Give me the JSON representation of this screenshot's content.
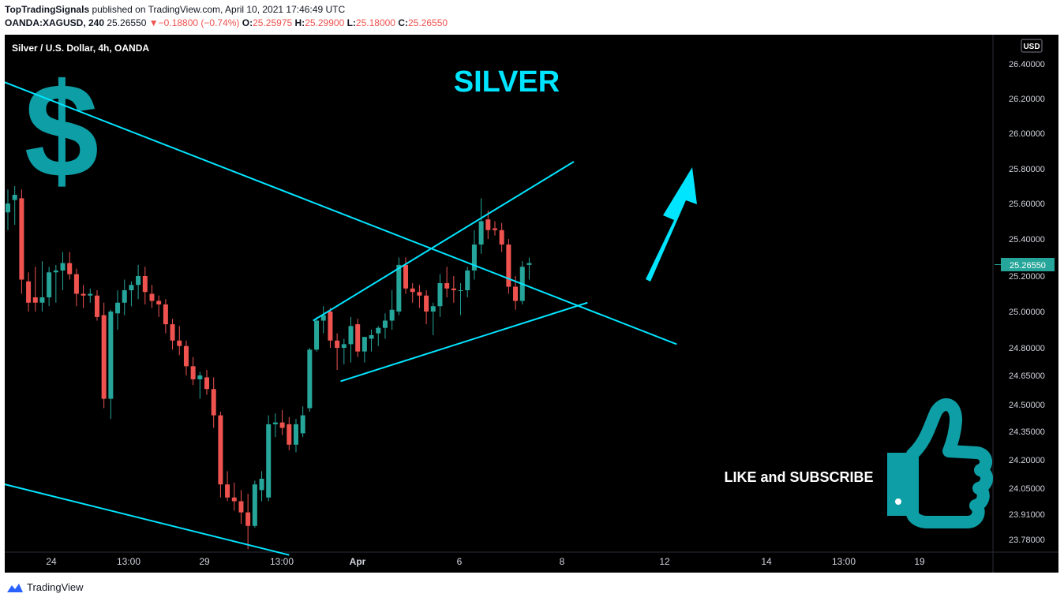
{
  "header": {
    "publisher": "TopTradingSignals",
    "published_text": " published on TradingView.com, April 10, 2021 17:46:49 UTC",
    "symbol": "OANDA:XAGUSD, 240",
    "last": "25.26550",
    "change_arrow": "▼",
    "change": "−0.18800 (−0.74%)",
    "o_label": "O:",
    "o_value": "25.25975",
    "h_label": "H:",
    "h_value": "25.29900",
    "l_label": "L:",
    "l_value": "25.18000",
    "c_label": "C:",
    "c_value": "25.26550"
  },
  "legend": {
    "title": "Silver / U.S. Dollar, 4h, OANDA"
  },
  "currency_badge": "USD",
  "annotations": {
    "silver_label": "SILVER",
    "like_label": "LIKE and SUBSCRIBE",
    "dollar_glyph": "$"
  },
  "footer": {
    "brand": "TradingView"
  },
  "colors": {
    "background": "#000000",
    "up": "#26a69a",
    "down": "#ef5350",
    "trendline": "#00e5ff",
    "last_price_badge": "#26a69a",
    "icon_teal": "#0e9ea5"
  },
  "icons": [
    "dollar-icon",
    "thumbs-up-icon",
    "up-arrow-icon",
    "tradingview-logo-icon"
  ],
  "chart_data": {
    "type": "candlestick",
    "title": "Silver / U.S. Dollar, 4h, OANDA",
    "y_axis": {
      "ticks": [
        "26.40000",
        "26.20000",
        "26.00000",
        "25.80000",
        "25.60000",
        "25.40000",
        "25.20000",
        "25.00000",
        "24.80000",
        "24.65000",
        "24.50000",
        "24.35000",
        "24.20000",
        "24.05000",
        "23.91000",
        "23.78000"
      ],
      "currency": "USD"
    },
    "x_axis": {
      "ticks": [
        "24",
        "13:00",
        "29",
        "13:00",
        "Apr",
        "6",
        "8",
        "12",
        "14",
        "13:00",
        "19"
      ]
    },
    "last_price": "25.26550",
    "candles": [
      {
        "o": 25.55,
        "h": 25.68,
        "l": 25.45,
        "c": 25.6
      },
      {
        "o": 25.62,
        "h": 25.7,
        "l": 25.48,
        "c": 25.65
      },
      {
        "o": 25.63,
        "h": 25.68,
        "l": 25.1,
        "c": 25.18
      },
      {
        "o": 25.17,
        "h": 25.22,
        "l": 25.0,
        "c": 25.05
      },
      {
        "o": 25.08,
        "h": 25.25,
        "l": 25.0,
        "c": 25.05
      },
      {
        "o": 25.05,
        "h": 25.28,
        "l": 25.0,
        "c": 25.08
      },
      {
        "o": 25.08,
        "h": 25.25,
        "l": 25.03,
        "c": 25.22
      },
      {
        "o": 25.22,
        "h": 25.26,
        "l": 25.05,
        "c": 25.23
      },
      {
        "o": 25.23,
        "h": 25.33,
        "l": 25.12,
        "c": 25.27
      },
      {
        "o": 25.27,
        "h": 25.33,
        "l": 25.18,
        "c": 25.21
      },
      {
        "o": 25.21,
        "h": 25.24,
        "l": 25.03,
        "c": 25.1
      },
      {
        "o": 25.1,
        "h": 25.15,
        "l": 25.02,
        "c": 25.09
      },
      {
        "o": 25.09,
        "h": 25.13,
        "l": 25.05,
        "c": 25.1
      },
      {
        "o": 25.09,
        "h": 25.12,
        "l": 24.95,
        "c": 24.97
      },
      {
        "o": 24.98,
        "h": 25.05,
        "l": 24.48,
        "c": 24.53
      },
      {
        "o": 24.53,
        "h": 25.01,
        "l": 24.42,
        "c": 25.0
      },
      {
        "o": 24.99,
        "h": 25.12,
        "l": 24.9,
        "c": 25.05
      },
      {
        "o": 25.05,
        "h": 25.18,
        "l": 24.98,
        "c": 25.12
      },
      {
        "o": 25.12,
        "h": 25.17,
        "l": 25.03,
        "c": 25.15
      },
      {
        "o": 25.15,
        "h": 25.26,
        "l": 25.07,
        "c": 25.2
      },
      {
        "o": 25.2,
        "h": 25.25,
        "l": 25.04,
        "c": 25.11
      },
      {
        "o": 25.1,
        "h": 25.15,
        "l": 25.02,
        "c": 25.06
      },
      {
        "o": 25.06,
        "h": 25.09,
        "l": 24.97,
        "c": 25.04
      },
      {
        "o": 25.04,
        "h": 25.07,
        "l": 24.88,
        "c": 24.93
      },
      {
        "o": 24.93,
        "h": 24.96,
        "l": 24.79,
        "c": 24.84
      },
      {
        "o": 24.84,
        "h": 24.92,
        "l": 24.76,
        "c": 24.81
      },
      {
        "o": 24.81,
        "h": 24.84,
        "l": 24.65,
        "c": 24.7
      },
      {
        "o": 24.7,
        "h": 24.75,
        "l": 24.6,
        "c": 24.63
      },
      {
        "o": 24.63,
        "h": 24.67,
        "l": 24.53,
        "c": 24.65
      },
      {
        "o": 24.64,
        "h": 24.68,
        "l": 24.55,
        "c": 24.58
      },
      {
        "o": 24.58,
        "h": 24.64,
        "l": 24.37,
        "c": 24.44
      },
      {
        "o": 24.44,
        "h": 24.46,
        "l": 24.0,
        "c": 24.07
      },
      {
        "o": 24.07,
        "h": 24.14,
        "l": 23.98,
        "c": 24.0
      },
      {
        "o": 24.0,
        "h": 24.08,
        "l": 23.93,
        "c": 23.98
      },
      {
        "o": 23.98,
        "h": 24.04,
        "l": 23.86,
        "c": 23.92
      },
      {
        "o": 23.92,
        "h": 24.02,
        "l": 23.73,
        "c": 23.85
      },
      {
        "o": 23.85,
        "h": 24.09,
        "l": 23.84,
        "c": 24.07
      },
      {
        "o": 24.04,
        "h": 24.14,
        "l": 23.98,
        "c": 24.1
      },
      {
        "o": 24.0,
        "h": 24.44,
        "l": 23.98,
        "c": 24.39
      },
      {
        "o": 24.39,
        "h": 24.45,
        "l": 24.32,
        "c": 24.4
      },
      {
        "o": 24.4,
        "h": 24.47,
        "l": 24.33,
        "c": 24.37
      },
      {
        "o": 24.39,
        "h": 24.43,
        "l": 24.25,
        "c": 24.28
      },
      {
        "o": 24.28,
        "h": 24.42,
        "l": 24.24,
        "c": 24.39
      },
      {
        "o": 24.34,
        "h": 24.49,
        "l": 24.32,
        "c": 24.44
      },
      {
        "o": 24.48,
        "h": 24.8,
        "l": 24.46,
        "c": 24.79
      },
      {
        "o": 24.79,
        "h": 24.97,
        "l": 24.78,
        "c": 24.95
      },
      {
        "o": 24.95,
        "h": 25.03,
        "l": 24.88,
        "c": 24.98
      },
      {
        "o": 25.0,
        "h": 25.02,
        "l": 24.8,
        "c": 24.84
      },
      {
        "o": 24.84,
        "h": 24.88,
        "l": 24.68,
        "c": 24.8
      },
      {
        "o": 24.8,
        "h": 24.85,
        "l": 24.71,
        "c": 24.82
      },
      {
        "o": 24.82,
        "h": 24.97,
        "l": 24.72,
        "c": 24.92
      },
      {
        "o": 24.93,
        "h": 24.96,
        "l": 24.75,
        "c": 24.78
      },
      {
        "o": 24.78,
        "h": 24.85,
        "l": 24.72,
        "c": 24.86
      },
      {
        "o": 24.85,
        "h": 24.9,
        "l": 24.78,
        "c": 24.87
      },
      {
        "o": 24.88,
        "h": 24.92,
        "l": 24.81,
        "c": 24.91
      },
      {
        "o": 24.91,
        "h": 24.99,
        "l": 24.85,
        "c": 24.95
      },
      {
        "o": 24.95,
        "h": 25.12,
        "l": 24.9,
        "c": 25.01
      },
      {
        "o": 25.0,
        "h": 25.3,
        "l": 24.98,
        "c": 25.26
      },
      {
        "o": 25.26,
        "h": 25.3,
        "l": 25.1,
        "c": 25.13
      },
      {
        "o": 25.13,
        "h": 25.16,
        "l": 25.05,
        "c": 25.11
      },
      {
        "o": 25.11,
        "h": 25.15,
        "l": 25.02,
        "c": 25.09
      },
      {
        "o": 25.09,
        "h": 25.12,
        "l": 24.93,
        "c": 25.0
      },
      {
        "o": 25.0,
        "h": 25.05,
        "l": 24.87,
        "c": 25.03
      },
      {
        "o": 25.03,
        "h": 25.21,
        "l": 24.97,
        "c": 25.16
      },
      {
        "o": 25.16,
        "h": 25.25,
        "l": 25.08,
        "c": 25.13
      },
      {
        "o": 25.13,
        "h": 25.2,
        "l": 25.05,
        "c": 25.12
      },
      {
        "o": 25.12,
        "h": 25.16,
        "l": 24.98,
        "c": 25.12
      },
      {
        "o": 25.12,
        "h": 25.25,
        "l": 25.08,
        "c": 25.23
      },
      {
        "o": 25.23,
        "h": 25.45,
        "l": 25.18,
        "c": 25.37
      },
      {
        "o": 25.37,
        "h": 25.63,
        "l": 25.32,
        "c": 25.5
      },
      {
        "o": 25.51,
        "h": 25.56,
        "l": 25.4,
        "c": 25.45
      },
      {
        "o": 25.46,
        "h": 25.5,
        "l": 25.42,
        "c": 25.45
      },
      {
        "o": 25.45,
        "h": 25.49,
        "l": 25.33,
        "c": 25.37
      },
      {
        "o": 25.37,
        "h": 25.4,
        "l": 25.1,
        "c": 25.14
      },
      {
        "o": 25.14,
        "h": 25.2,
        "l": 25.01,
        "c": 25.06
      },
      {
        "o": 25.06,
        "h": 25.28,
        "l": 25.04,
        "c": 25.25
      },
      {
        "o": 25.26,
        "h": 25.3,
        "l": 25.18,
        "c": 25.27
      }
    ],
    "trendlines": [
      {
        "name": "long-downtrend",
        "from": {
          "bar": -1.5,
          "price": 26.31
        },
        "to": {
          "bar": 97.5,
          "price": 24.82
        }
      },
      {
        "name": "lower-channel",
        "from": {
          "bar": -1.5,
          "price": 24.08
        },
        "to": {
          "bar": 41,
          "price": 23.7
        }
      },
      {
        "name": "wedge-upper",
        "from": {
          "bar": 44.5,
          "price": 24.95
        },
        "to": {
          "bar": 82.5,
          "price": 25.84
        }
      },
      {
        "name": "wedge-lower",
        "from": {
          "bar": 48.5,
          "price": 24.62
        },
        "to": {
          "bar": 84.5,
          "price": 25.05
        }
      }
    ]
  }
}
